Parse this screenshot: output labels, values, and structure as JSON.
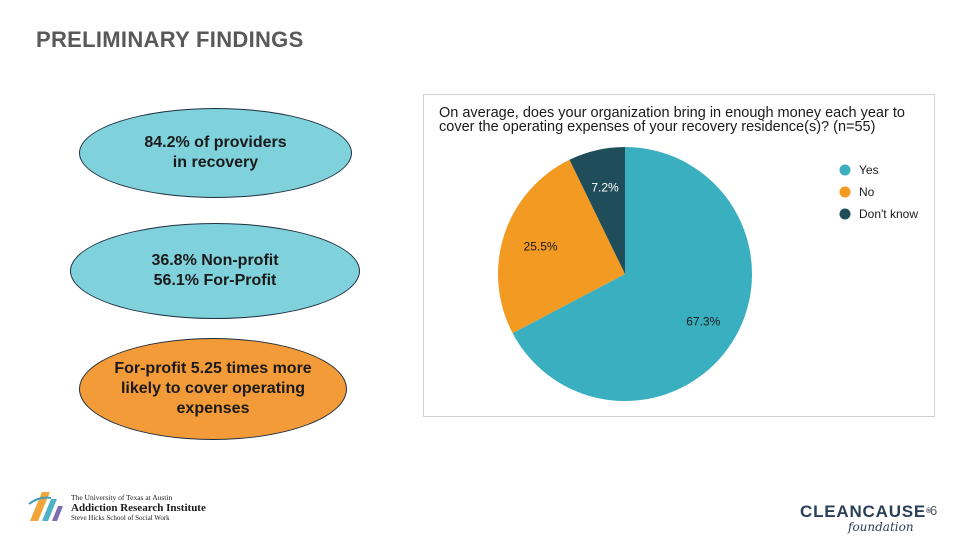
{
  "slide": {
    "title": "PRELIMINARY FINDINGS",
    "page_number": "6"
  },
  "findings": [
    {
      "text": "84.2% of providers\nin recovery",
      "color": "#7fd1dc"
    },
    {
      "text": "36.8% Non-profit\n56.1% For-Profit",
      "color": "#7fd1dc"
    },
    {
      "text": "For-profit 5.25 times more\nlikely to cover operating\nexpenses",
      "color": "#f29b38"
    }
  ],
  "chart_data": {
    "type": "pie",
    "title": "On average, does your organization bring in enough money each year to cover the operating expenses of your recovery residence(s)? (n=55)",
    "labels": [
      "Yes",
      "No",
      "Don't know"
    ],
    "values": [
      67.3,
      25.5,
      7.2
    ],
    "value_labels": [
      "67.3%",
      "25.5%",
      "7.2%"
    ],
    "colors": [
      "#3aafc0",
      "#f29a22",
      "#1f4e5a"
    ],
    "legend_position": "right"
  },
  "footer": {
    "ari_line1": "The University of Texas at Austin",
    "ari_line2": "Addiction Research Institute",
    "ari_line3": "Steve Hicks School of Social Work",
    "cleancause_main": "CLEANCAUSE",
    "cleancause_tm": "®",
    "cleancause_sub": "foundation"
  }
}
